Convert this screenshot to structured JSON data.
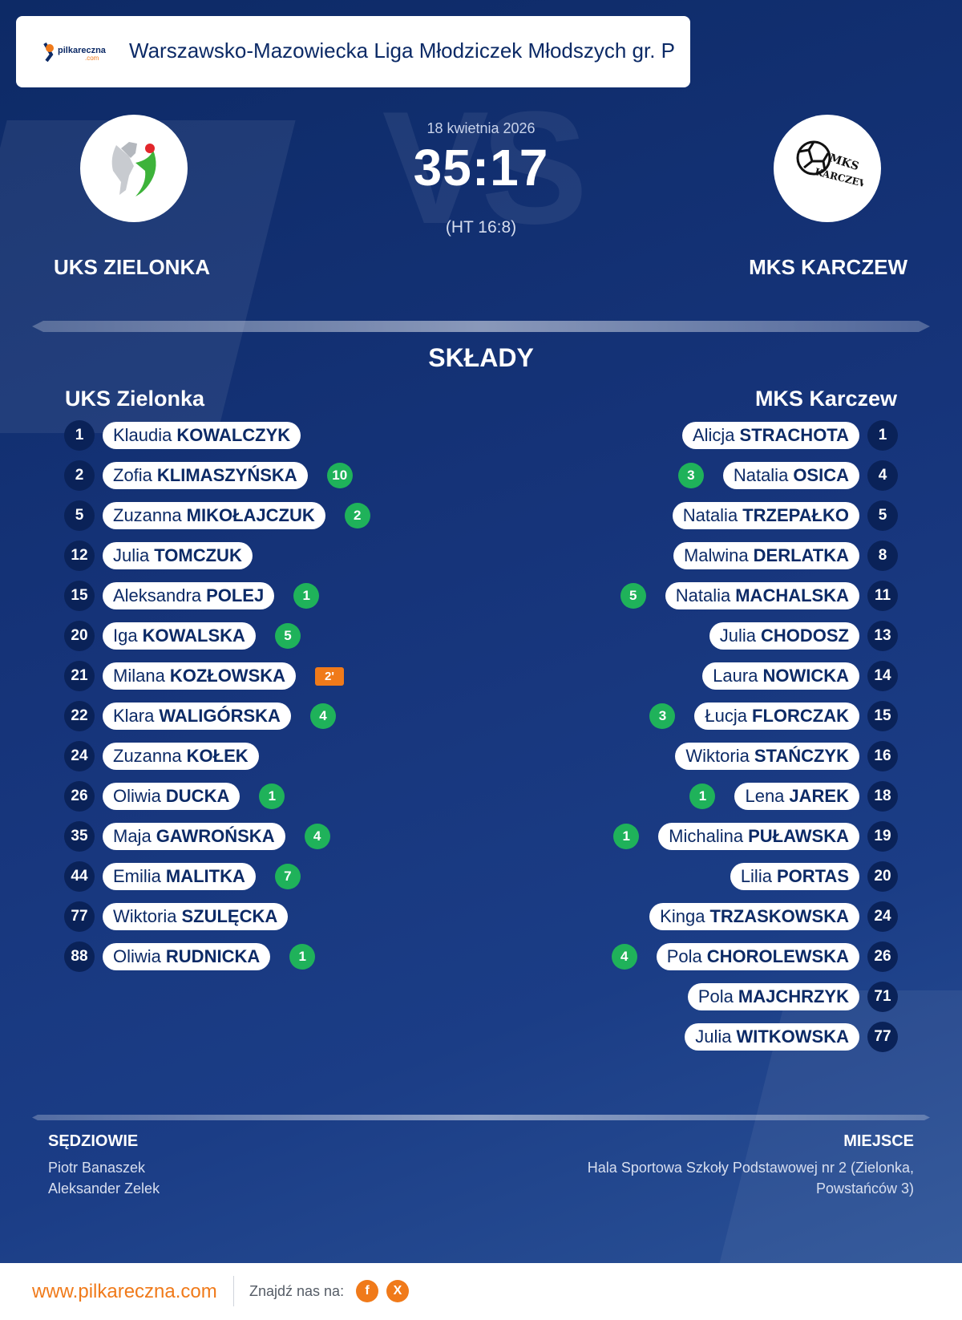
{
  "header": {
    "league": "Warszawsko-Mazowiecka Liga Młodziczek Młodszych gr. P",
    "logo_text": "pilkareczna",
    "logo_subtext": ".com"
  },
  "match": {
    "date": "18 kwietnia 2026",
    "score": "35:17",
    "halftime": "(HT 16:8)",
    "home_team": "UKS ZIELONKA",
    "away_team": "MKS KARCZEW",
    "away_crest_text_1": "MKS",
    "away_crest_text_2": "KARCZEW",
    "vs_watermark": "VS"
  },
  "lineups": {
    "title": "SKŁADY",
    "home_heading": "UKS Zielonka",
    "away_heading": "MKS Karczew",
    "home": [
      {
        "number": "1",
        "first": "Klaudia",
        "last": "KOWALCZYK"
      },
      {
        "number": "2",
        "first": "Zofia",
        "last": "KLIMASZYŃSKA",
        "goals": "10"
      },
      {
        "number": "5",
        "first": "Zuzanna",
        "last": "MIKOŁAJCZUK",
        "goals": "2"
      },
      {
        "number": "12",
        "first": "Julia",
        "last": "TOMCZUK"
      },
      {
        "number": "15",
        "first": "Aleksandra",
        "last": "POLEJ",
        "goals": "1"
      },
      {
        "number": "20",
        "first": "Iga",
        "last": "KOWALSKA",
        "goals": "5"
      },
      {
        "number": "21",
        "first": "Milana",
        "last": "KOZŁOWSKA",
        "penalty": "2'"
      },
      {
        "number": "22",
        "first": "Klara",
        "last": "WALIGÓRSKA",
        "goals": "4"
      },
      {
        "number": "24",
        "first": "Zuzanna",
        "last": "KOŁEK"
      },
      {
        "number": "26",
        "first": "Oliwia",
        "last": "DUCKA",
        "goals": "1"
      },
      {
        "number": "35",
        "first": "Maja",
        "last": "GAWROŃSKA",
        "goals": "4"
      },
      {
        "number": "44",
        "first": "Emilia",
        "last": "MALITKA",
        "goals": "7"
      },
      {
        "number": "77",
        "first": "Wiktoria",
        "last": "SZULĘCKA"
      },
      {
        "number": "88",
        "first": "Oliwia",
        "last": "RUDNICKA",
        "goals": "1"
      }
    ],
    "away": [
      {
        "number": "1",
        "first": "Alicja",
        "last": "STRACHOTA"
      },
      {
        "number": "4",
        "first": "Natalia",
        "last": "OSICA",
        "goals": "3"
      },
      {
        "number": "5",
        "first": "Natalia",
        "last": "TRZEPAŁKO"
      },
      {
        "number": "8",
        "first": "Malwina",
        "last": "DERLATKA"
      },
      {
        "number": "11",
        "first": "Natalia",
        "last": "MACHALSKA",
        "goals": "5"
      },
      {
        "number": "13",
        "first": "Julia",
        "last": "CHODOSZ"
      },
      {
        "number": "14",
        "first": "Laura",
        "last": "NOWICKA"
      },
      {
        "number": "15",
        "first": "Łucja",
        "last": "FLORCZAK",
        "goals": "3"
      },
      {
        "number": "16",
        "first": "Wiktoria",
        "last": "STAŃCZYK"
      },
      {
        "number": "18",
        "first": "Lena",
        "last": "JAREK",
        "goals": "1"
      },
      {
        "number": "19",
        "first": "Michalina",
        "last": "PUŁAWSKA",
        "goals": "1"
      },
      {
        "number": "20",
        "first": "Lilia",
        "last": "PORTAS"
      },
      {
        "number": "24",
        "first": "Kinga",
        "last": "TRZASKOWSKA"
      },
      {
        "number": "26",
        "first": "Pola",
        "last": "CHOROLEWSKA",
        "goals": "4"
      },
      {
        "number": "71",
        "first": "Pola",
        "last": "MAJCHRZYK"
      },
      {
        "number": "77",
        "first": "Julia",
        "last": "WITKOWSKA"
      }
    ]
  },
  "officials": {
    "title": "SĘDZIOWIE",
    "names": [
      "Piotr Banaszek",
      "Aleksander Zelek"
    ]
  },
  "venue": {
    "title": "MIEJSCE",
    "lines": [
      "Hala Sportowa Szkoły Podstawowej nr 2 (Zielonka,",
      "Powstańców 3)"
    ]
  },
  "footer": {
    "url": "www.pilkareczna.com",
    "find_us": "Znajdź nas na:",
    "facebook_label": "f",
    "x_label": "X"
  },
  "colors": {
    "background": "#16347a",
    "number_circle": "#0a2258",
    "goal_badge": "#1fb25a",
    "penalty_badge": "#f07a1a",
    "accent": "#f07a1a"
  }
}
